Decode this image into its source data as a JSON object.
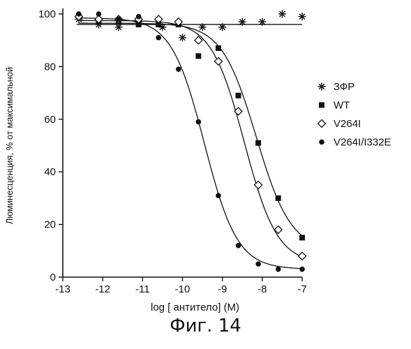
{
  "caption": "Фиг. 14",
  "chart_data": {
    "type": "scatter",
    "title": "",
    "xlabel": "log [ антитело] (M)",
    "ylabel": "Люминесценция, % от максимальной",
    "xlim": [
      -13,
      -7
    ],
    "ylim": [
      0,
      100
    ],
    "xticks": [
      -13,
      -12,
      -11,
      -10,
      -9,
      -8,
      -7
    ],
    "xtick_labels": [
      "-13",
      "-12",
      "-11",
      "-10",
      "-9",
      "-8",
      "-7"
    ],
    "yticks": [
      0,
      20,
      40,
      60,
      80,
      100
    ],
    "ytick_labels": [
      "0",
      "20",
      "40",
      "60",
      "80",
      "100"
    ],
    "grid": false,
    "legend_position": "right",
    "series": [
      {
        "name": "ЗФР",
        "marker": "asterisk",
        "fit": "flat",
        "fit_value": 96,
        "x": [
          -12.6,
          -12.1,
          -11.6,
          -11.1,
          -10.5,
          -10.0,
          -9.5,
          -9.0,
          -8.5,
          -8.0,
          -7.5,
          -7.0
        ],
        "y": [
          98,
          96,
          95,
          97,
          95,
          91,
          95,
          95,
          97,
          97,
          100,
          99
        ]
      },
      {
        "name": "WT",
        "marker": "filled-square",
        "fit": "sigmoid",
        "fit_params": {
          "bottom": 10,
          "top": 96.5,
          "logec50": -8.15,
          "hill": 1.0
        },
        "x": [
          -12.6,
          -12.1,
          -11.6,
          -11.1,
          -10.6,
          -10.1,
          -9.6,
          -9.1,
          -8.6,
          -8.1,
          -7.6,
          -7.0
        ],
        "y": [
          99,
          97,
          97,
          96,
          96,
          96,
          84,
          87,
          69,
          51,
          30,
          15
        ]
      },
      {
        "name": "V264I",
        "marker": "open-diamond",
        "fit": "sigmoid",
        "fit_params": {
          "bottom": 5,
          "top": 97.5,
          "logec50": -8.45,
          "hill": 1.05
        },
        "x": [
          -12.6,
          -12.1,
          -11.6,
          -11.1,
          -10.6,
          -10.1,
          -9.6,
          -9.1,
          -8.6,
          -8.1,
          -7.6,
          -7.0
        ],
        "y": [
          99,
          98,
          98,
          98,
          98,
          97,
          90,
          82,
          63,
          35,
          18,
          8
        ]
      },
      {
        "name": "V264I/I332E",
        "marker": "filled-circle",
        "fit": "sigmoid",
        "fit_params": {
          "bottom": 3,
          "top": 98.5,
          "logec50": -9.45,
          "hill": 1.05
        },
        "x": [
          -12.6,
          -12.1,
          -11.6,
          -11.1,
          -10.6,
          -10.1,
          -9.6,
          -9.1,
          -8.6,
          -8.1,
          -7.6,
          -7.0
        ],
        "y": [
          100,
          100,
          98,
          99,
          91,
          79,
          59,
          31,
          12,
          5,
          3,
          3
        ]
      }
    ]
  },
  "colors": {
    "ink": "#111111",
    "background": "#ffffff"
  }
}
